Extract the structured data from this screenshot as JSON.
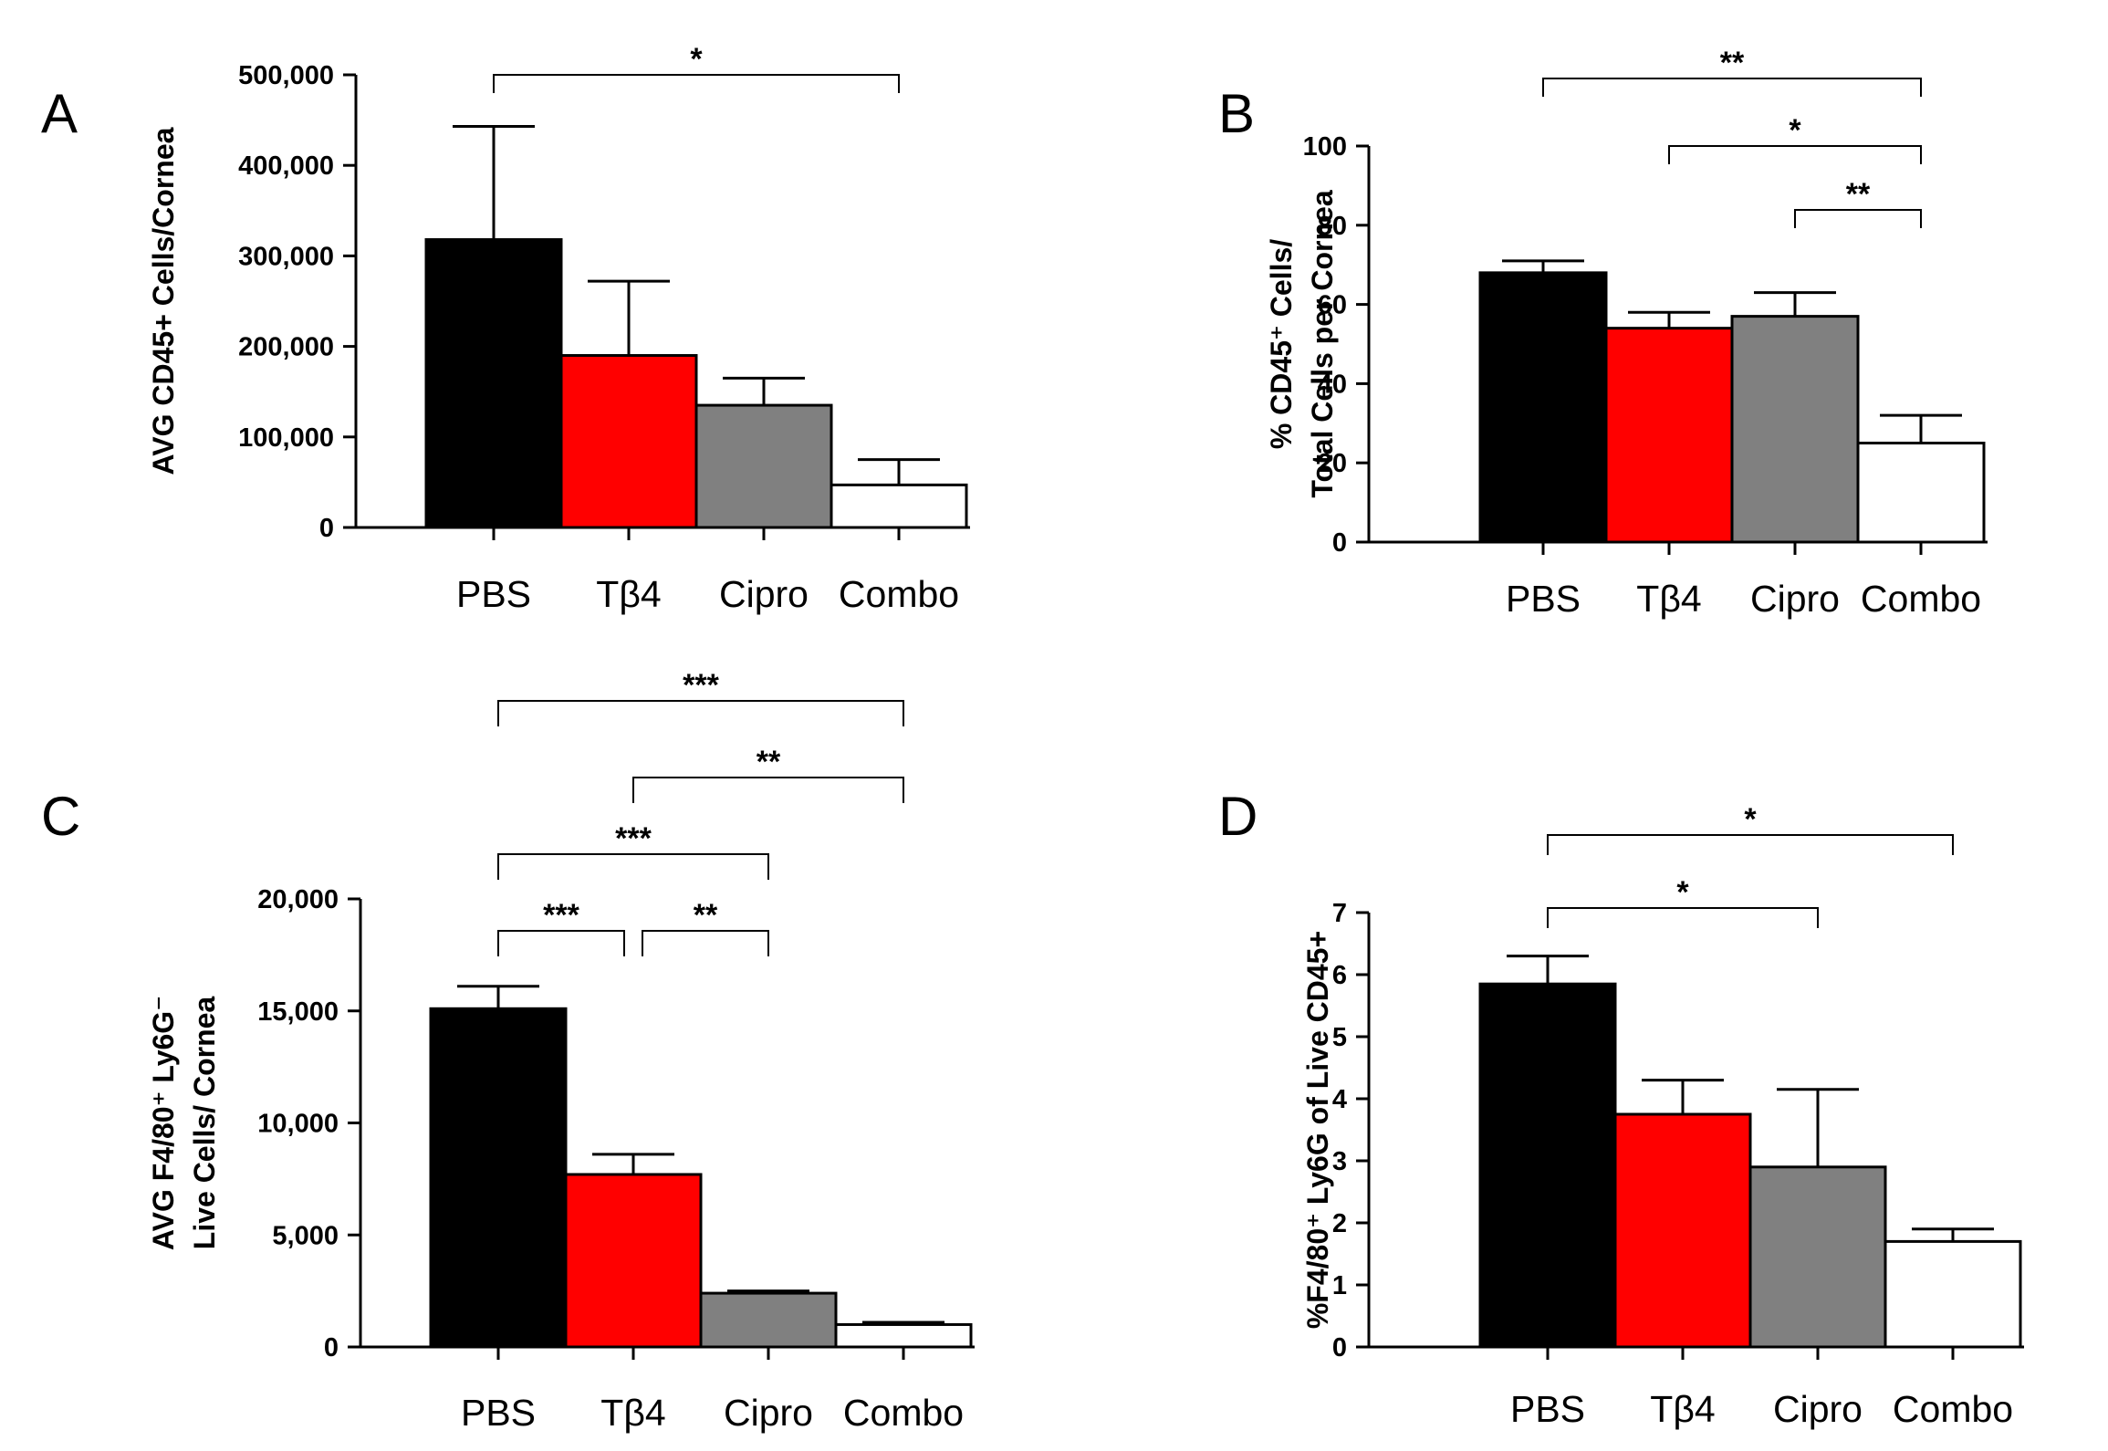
{
  "chart_data": [
    {
      "panel": "A",
      "type": "bar",
      "categories": [
        "PBS",
        "Tβ4",
        "Cipro",
        "Combo"
      ],
      "values": [
        318000,
        190000,
        135000,
        47000
      ],
      "errors": [
        125000,
        82000,
        30000,
        28000
      ],
      "colors": [
        "#000000",
        "#ff0000",
        "#808080",
        "#ffffff"
      ],
      "ylabel": "AVG CD45+ Cells/Cornea",
      "ylim": [
        0,
        500000
      ],
      "yticks": [
        0,
        100000,
        200000,
        300000,
        400000,
        500000
      ],
      "ytick_labels": [
        "0",
        "100,000",
        "200,000",
        "300,000",
        "400,000",
        "500,000"
      ],
      "significance": [
        {
          "from": 0,
          "to": 3,
          "label": "*"
        }
      ]
    },
    {
      "panel": "B",
      "type": "bar",
      "categories": [
        "PBS",
        "Tβ4",
        "Cipro",
        "Combo"
      ],
      "values": [
        68,
        54,
        57,
        25
      ],
      "errors": [
        3,
        4,
        6,
        7
      ],
      "colors": [
        "#000000",
        "#ff0000",
        "#808080",
        "#ffffff"
      ],
      "ylabel_lines": [
        "% CD45⁺ Cells/",
        "Total Cells per Cornea"
      ],
      "ylim": [
        0,
        100
      ],
      "yticks": [
        0,
        20,
        40,
        60,
        80,
        100
      ],
      "ytick_labels": [
        "0",
        "20",
        "40",
        "60",
        "80",
        "100"
      ],
      "significance": [
        {
          "from": 0,
          "to": 3,
          "label": "**"
        },
        {
          "from": 1,
          "to": 3,
          "label": "*"
        },
        {
          "from": 2,
          "to": 3,
          "label": "**"
        }
      ]
    },
    {
      "panel": "C",
      "type": "bar",
      "categories": [
        "PBS",
        "Tβ4",
        "Cipro",
        "Combo"
      ],
      "values": [
        15100,
        7700,
        2400,
        1000
      ],
      "errors": [
        1000,
        900,
        100,
        100
      ],
      "colors": [
        "#000000",
        "#ff0000",
        "#808080",
        "#ffffff"
      ],
      "ylabel_lines": [
        "AVG F4/80⁺ Ly6G⁻",
        "Live Cells/ Cornea"
      ],
      "ylim": [
        0,
        20000
      ],
      "yticks": [
        0,
        5000,
        10000,
        15000,
        20000
      ],
      "ytick_labels": [
        "0",
        "5,000",
        "10,000",
        "15,000",
        "20,000"
      ],
      "significance": [
        {
          "from": 0,
          "to": 3,
          "label": "***"
        },
        {
          "from": 1,
          "to": 3,
          "label": "**"
        },
        {
          "from": 0,
          "to": 2,
          "label": "***"
        },
        {
          "from": 0,
          "to": 1,
          "label": "***"
        },
        {
          "from": 1,
          "to": 2,
          "label": "**"
        }
      ]
    },
    {
      "panel": "D",
      "type": "bar",
      "categories": [
        "PBS",
        "Tβ4",
        "Cipro",
        "Combo"
      ],
      "values": [
        5.85,
        3.75,
        2.9,
        1.7
      ],
      "errors": [
        0.45,
        0.55,
        1.25,
        0.2
      ],
      "colors": [
        "#000000",
        "#ff0000",
        "#808080",
        "#ffffff"
      ],
      "ylabel": "%F4/80⁺ Ly6G of Live CD45+",
      "ylim": [
        0,
        7
      ],
      "yticks": [
        0,
        1,
        2,
        3,
        4,
        5,
        6,
        7
      ],
      "ytick_labels": [
        "0",
        "1",
        "2",
        "3",
        "4",
        "5",
        "6",
        "7"
      ],
      "significance": [
        {
          "from": 0,
          "to": 3,
          "label": "*"
        },
        {
          "from": 0,
          "to": 2,
          "label": "*"
        }
      ]
    }
  ]
}
